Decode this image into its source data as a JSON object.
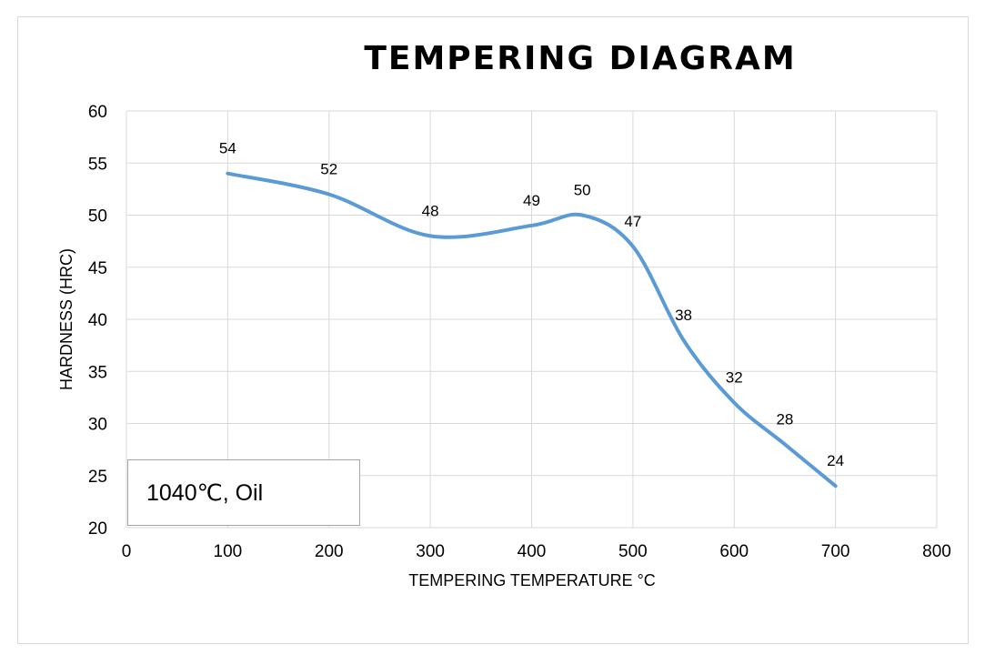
{
  "chart_data": {
    "type": "line",
    "title": "TEMPERING DIAGRAM",
    "xlabel": "TEMPERING TEMPERATURE °C",
    "ylabel": "HARDNESS (HRC)",
    "xlim": [
      0,
      800
    ],
    "ylim": [
      20,
      60
    ],
    "x_ticks": [
      0,
      100,
      200,
      300,
      400,
      500,
      600,
      700,
      800
    ],
    "y_ticks": [
      20,
      25,
      30,
      35,
      40,
      45,
      50,
      55,
      60
    ],
    "grid": true,
    "smooth": true,
    "line_color": "#5b9bd5",
    "series": [
      {
        "x": [
          100,
          200,
          300,
          400,
          450,
          500,
          550,
          600,
          650,
          700
        ],
        "y": [
          54,
          52,
          48,
          49,
          50,
          47,
          38,
          32,
          28,
          24
        ],
        "data_labels": [
          "54",
          "52",
          "48",
          "49",
          "50",
          "47",
          "38",
          "32",
          "28",
          "24"
        ]
      }
    ],
    "annotation": "1040℃, Oil"
  }
}
